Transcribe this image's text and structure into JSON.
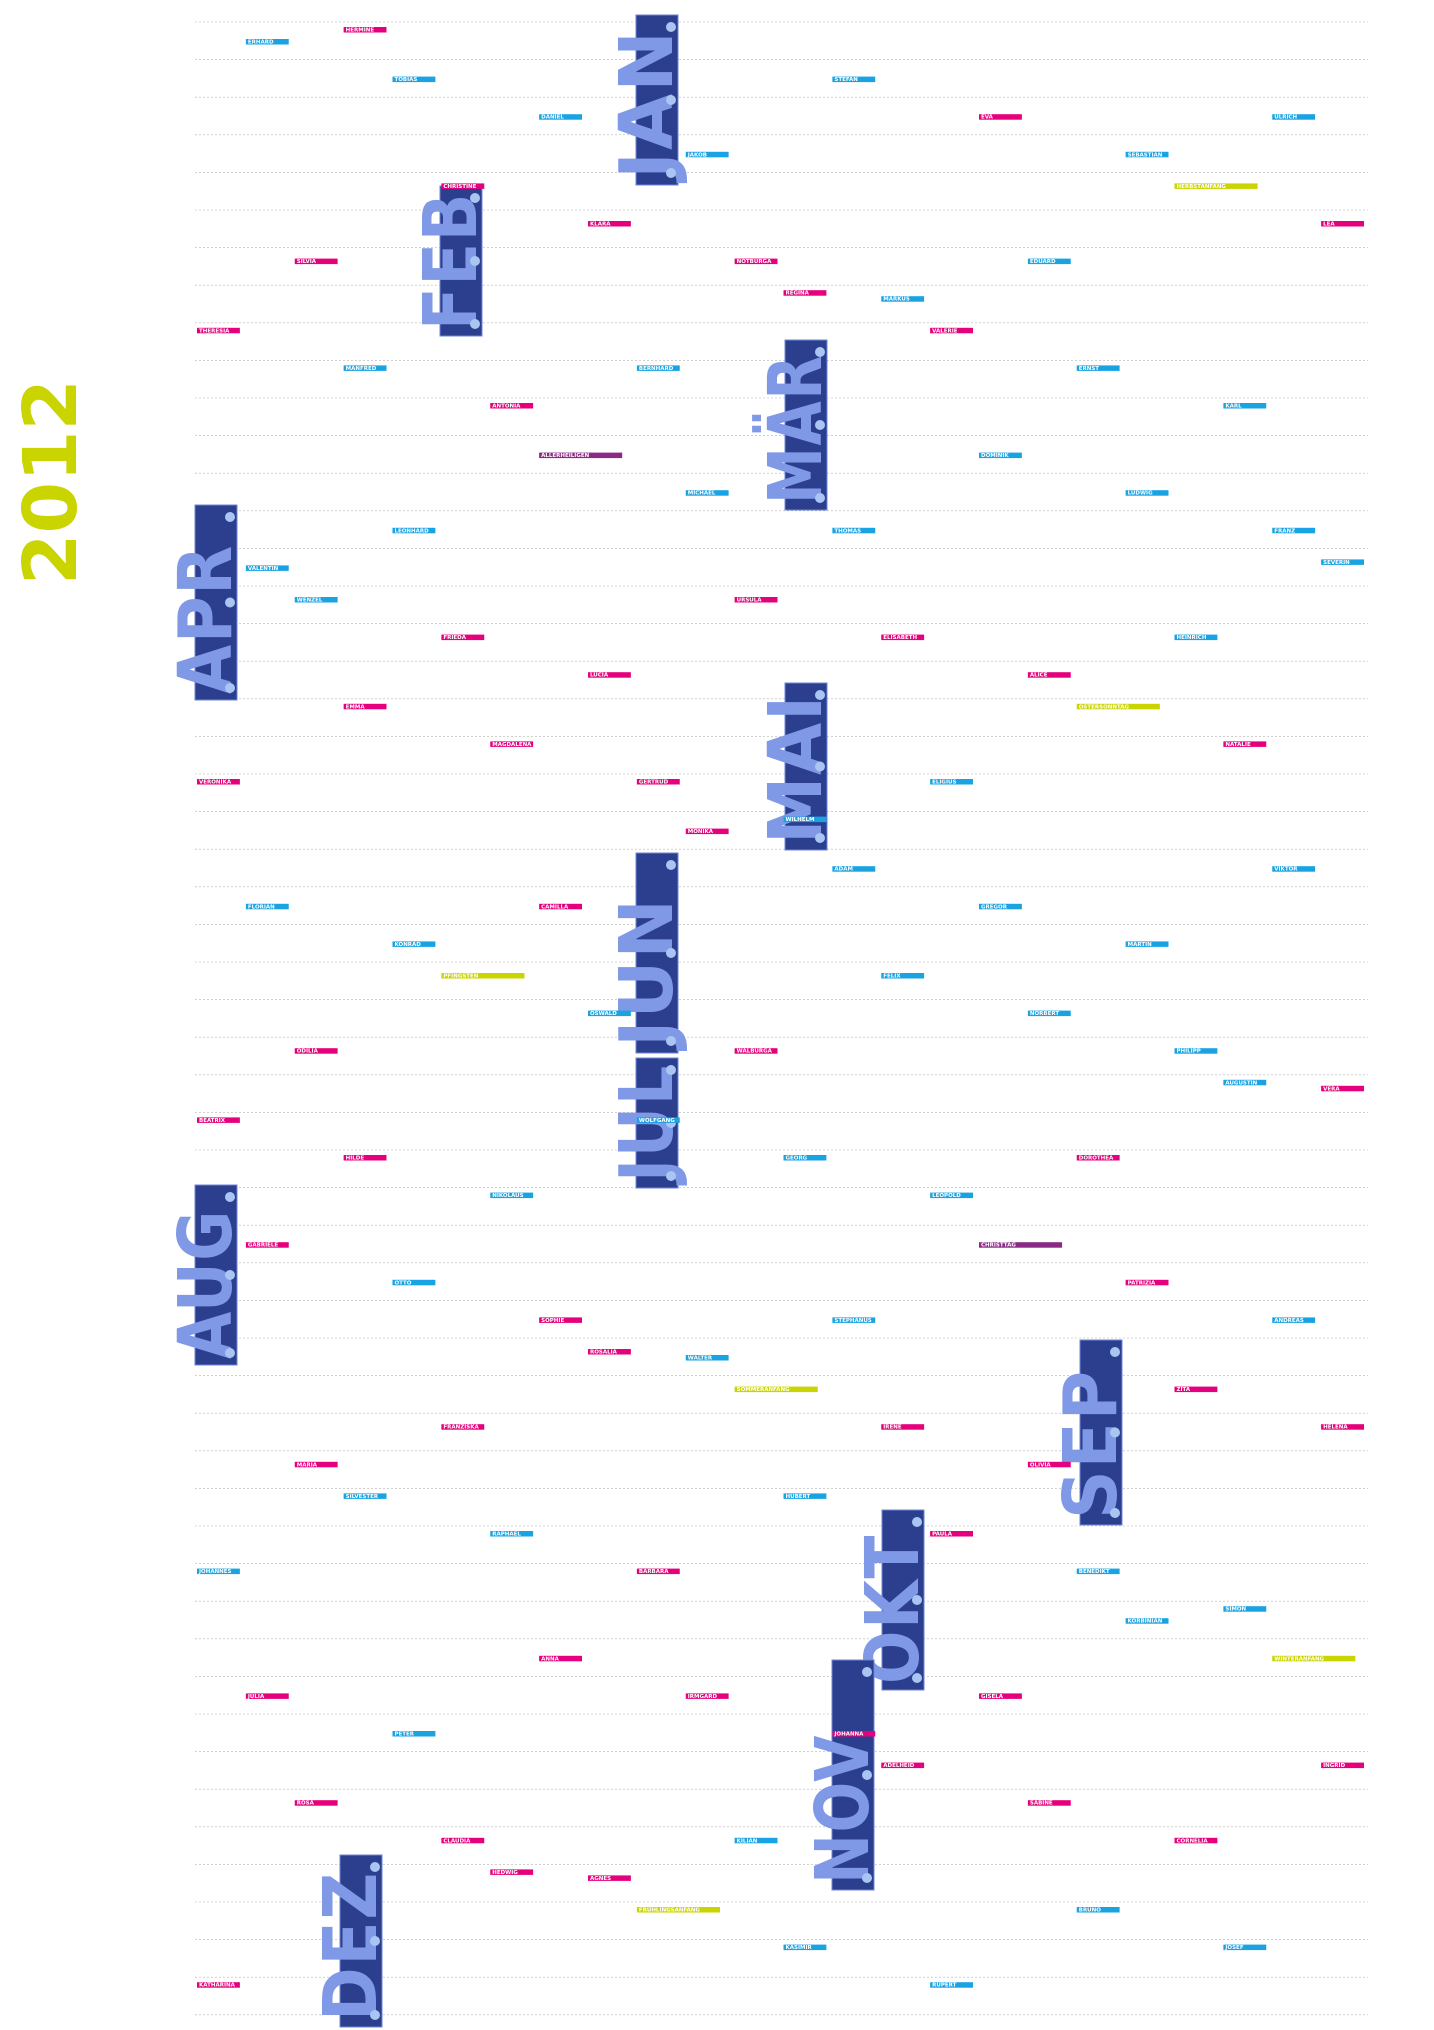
{
  "title": "2012",
  "palette": {
    "magenta": "#e5007d",
    "cyan": "#1aa3e2",
    "yellow": "#c9d400",
    "purple": "#8a2a84"
  },
  "months": [
    {
      "label": "JAN"
    },
    {
      "label": "FEB"
    },
    {
      "label": "MÄR"
    },
    {
      "label": "APR"
    },
    {
      "label": "MAI"
    },
    {
      "label": "JUN"
    },
    {
      "label": "JUL"
    },
    {
      "label": "AUG"
    },
    {
      "label": "SEP"
    },
    {
      "label": "OKT"
    },
    {
      "label": "NOV"
    },
    {
      "label": "DEZ"
    }
  ],
  "names": [
    {
      "text": "HERMINE",
      "color": "magenta"
    },
    {
      "text": "MARKUS",
      "color": "cyan"
    },
    {
      "text": "VALENTIN",
      "color": "cyan"
    },
    {
      "text": "WILHELM",
      "color": "cyan"
    },
    {
      "text": "VERA",
      "color": "magenta"
    },
    {
      "text": "WALTER",
      "color": "cyan"
    },
    {
      "text": "SIMON",
      "color": "cyan"
    },
    {
      "text": "AGNES",
      "color": "magenta"
    },
    {
      "text": "SEBASTIAN",
      "color": "cyan"
    },
    {
      "text": "ANTONIA",
      "color": "magenta"
    },
    {
      "text": "ALICE",
      "color": "magenta"
    },
    {
      "text": "KONRAD",
      "color": "cyan"
    },
    {
      "text": "LEOPOLD",
      "color": "cyan"
    },
    {
      "text": "MARIA",
      "color": "magenta"
    },
    {
      "text": "JOHANNA",
      "color": "magenta"
    },
    {
      "text": "KATHARINA",
      "color": "magenta"
    },
    {
      "text": "NOTBURGA",
      "color": "magenta"
    },
    {
      "text": "FRANZ",
      "color": "cyan"
    },
    {
      "text": "GERTRUD",
      "color": "magenta"
    },
    {
      "text": "PHILIPP",
      "color": "cyan"
    },
    {
      "text": "SOPHIE",
      "color": "magenta"
    },
    {
      "text": "BENEDIKT",
      "color": "cyan"
    },
    {
      "text": "CLAUDIA",
      "color": "magenta"
    },
    {
      "text": "EVA",
      "color": "magenta"
    },
    {
      "text": "MANFRED",
      "color": "cyan"
    },
    {
      "text": "ELISABETH",
      "color": "magenta"
    },
    {
      "text": "FLORIAN",
      "color": "cyan"
    },
    {
      "text": "GEORG",
      "color": "cyan"
    },
    {
      "text": "HELENA",
      "color": "magenta"
    },
    {
      "text": "IRMGARD",
      "color": "magenta"
    },
    {
      "text": "JOSEF",
      "color": "cyan"
    },
    {
      "text": "KLARA",
      "color": "magenta"
    },
    {
      "text": "LUDWIG",
      "color": "cyan"
    },
    {
      "text": "MAGDALENA",
      "color": "magenta"
    },
    {
      "text": "NORBERT",
      "color": "cyan"
    },
    {
      "text": "OTTO",
      "color": "cyan"
    },
    {
      "text": "PAULA",
      "color": "magenta"
    },
    {
      "text": "ROSA",
      "color": "magenta"
    },
    {
      "text": "STEFAN",
      "color": "cyan"
    },
    {
      "text": "THERESIA",
      "color": "magenta"
    },
    {
      "text": "URSULA",
      "color": "magenta"
    },
    {
      "text": "VIKTOR",
      "color": "cyan"
    },
    {
      "text": "WOLFGANG",
      "color": "cyan"
    },
    {
      "text": "ZITA",
      "color": "magenta"
    },
    {
      "text": "ANNA",
      "color": "magenta"
    },
    {
      "text": "BRUNO",
      "color": "cyan"
    },
    {
      "text": "CHRISTINE",
      "color": "magenta"
    },
    {
      "text": "DOMINIK",
      "color": "cyan"
    },
    {
      "text": "EMMA",
      "color": "magenta"
    },
    {
      "text": "FELIX",
      "color": "cyan"
    },
    {
      "text": "GABRIELE",
      "color": "magenta"
    },
    {
      "text": "HUBERT",
      "color": "cyan"
    },
    {
      "text": "INGRID",
      "color": "magenta"
    },
    {
      "text": "JAKOB",
      "color": "cyan"
    },
    {
      "text": "KARL",
      "color": "cyan"
    },
    {
      "text": "LUCIA",
      "color": "magenta"
    },
    {
      "text": "MARTIN",
      "color": "cyan"
    },
    {
      "text": "NIKOLAUS",
      "color": "cyan"
    },
    {
      "text": "OLIVIA",
      "color": "magenta"
    },
    {
      "text": "PETER",
      "color": "cyan"
    },
    {
      "text": "RUPERT",
      "color": "cyan"
    },
    {
      "text": "SILVIA",
      "color": "magenta"
    },
    {
      "text": "THOMAS",
      "color": "cyan"
    },
    {
      "text": "VERONIKA",
      "color": "magenta"
    },
    {
      "text": "WALBURGA",
      "color": "magenta"
    },
    {
      "text": "ANDREAS",
      "color": "cyan"
    },
    {
      "text": "BARBARA",
      "color": "magenta"
    },
    {
      "text": "CORNELIA",
      "color": "magenta"
    },
    {
      "text": "DANIEL",
      "color": "cyan"
    },
    {
      "text": "ERNST",
      "color": "cyan"
    },
    {
      "text": "FRIEDA",
      "color": "magenta"
    },
    {
      "text": "GREGOR",
      "color": "cyan"
    },
    {
      "text": "HILDE",
      "color": "magenta"
    },
    {
      "text": "IRENE",
      "color": "magenta"
    },
    {
      "text": "JULIA",
      "color": "magenta"
    },
    {
      "text": "KASIMIR",
      "color": "cyan"
    },
    {
      "text": "LEA",
      "color": "magenta"
    },
    {
      "text": "MICHAEL",
      "color": "cyan"
    },
    {
      "text": "NATALIE",
      "color": "magenta"
    },
    {
      "text": "OSWALD",
      "color": "cyan"
    },
    {
      "text": "PATRIZIA",
      "color": "magenta"
    },
    {
      "text": "RAPHAEL",
      "color": "cyan"
    },
    {
      "text": "SABINE",
      "color": "magenta"
    },
    {
      "text": "TOBIAS",
      "color": "cyan"
    },
    {
      "text": "VALERIE",
      "color": "magenta"
    },
    {
      "text": "WENZEL",
      "color": "cyan"
    },
    {
      "text": "ADAM",
      "color": "cyan"
    },
    {
      "text": "BEATRIX",
      "color": "magenta"
    },
    {
      "text": "SOMMERANFANG",
      "color": "yellow"
    },
    {
      "text": "WINTERANFANG",
      "color": "yellow"
    },
    {
      "text": "FRÜHLINGSANFANG",
      "color": "yellow"
    },
    {
      "text": "HERBSTANFANG",
      "color": "yellow"
    },
    {
      "text": "ALLERHEILIGEN",
      "color": "purple"
    },
    {
      "text": "OSTERSONNTAG",
      "color": "yellow"
    },
    {
      "text": "PFINGSTEN",
      "color": "yellow"
    },
    {
      "text": "CHRISTTAG",
      "color": "purple"
    },
    {
      "text": "SILVESTER",
      "color": "cyan"
    },
    {
      "text": "ADELHEID",
      "color": "magenta"
    },
    {
      "text": "ERHARD",
      "color": "cyan"
    },
    {
      "text": "REGINA",
      "color": "magenta"
    },
    {
      "text": "SEVERIN",
      "color": "cyan"
    },
    {
      "text": "MONIKA",
      "color": "magenta"
    },
    {
      "text": "AUGUSTIN",
      "color": "cyan"
    },
    {
      "text": "ROSALIA",
      "color": "magenta"
    },
    {
      "text": "KORBINIAN",
      "color": "cyan"
    },
    {
      "text": "HEDWIG",
      "color": "magenta"
    },
    {
      "text": "EDUARD",
      "color": "cyan"
    },
    {
      "text": "LEONHARD",
      "color": "cyan"
    },
    {
      "text": "ELIGIUS",
      "color": "cyan"
    },
    {
      "text": "ODILIA",
      "color": "magenta"
    },
    {
      "text": "STEPHANUS",
      "color": "cyan"
    },
    {
      "text": "JOHANNES",
      "color": "cyan"
    },
    {
      "text": "KILIAN",
      "color": "cyan"
    },
    {
      "text": "ULRICH",
      "color": "cyan"
    },
    {
      "text": "BERNHARD",
      "color": "cyan"
    },
    {
      "text": "HEINRICH",
      "color": "cyan"
    },
    {
      "text": "CAMILLA",
      "color": "magenta"
    },
    {
      "text": "DOROTHEA",
      "color": "magenta"
    },
    {
      "text": "FRANZISKA",
      "color": "magenta"
    },
    {
      "text": "GISELA",
      "color": "magenta"
    }
  ]
}
